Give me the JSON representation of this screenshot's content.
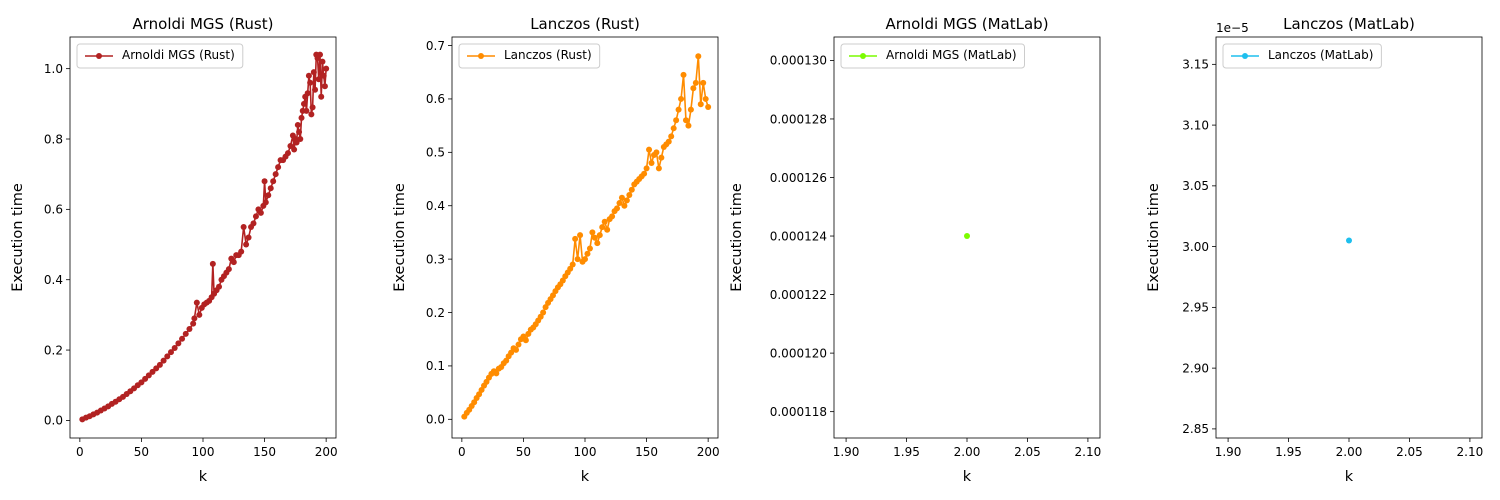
{
  "chart_data": [
    {
      "type": "line",
      "title": "Arnoldi MGS (Rust)",
      "xlabel": "k",
      "ylabel": "Execution time",
      "color": "#b22222",
      "marker": "circle",
      "legend": "upper-left",
      "grid": false,
      "xlim": [
        -8,
        208
      ],
      "ylim": [
        -0.05,
        1.09
      ],
      "xticks": [
        0,
        50,
        100,
        150,
        200
      ],
      "xtick_labels": [
        "0",
        "50",
        "100",
        "150",
        "200"
      ],
      "yticks": [
        0.0,
        0.2,
        0.4,
        0.6,
        0.8,
        1.0
      ],
      "ytick_labels": [
        "0.0",
        "0.2",
        "0.4",
        "0.6",
        "0.8",
        "1.0"
      ],
      "series": [
        {
          "name": "Arnoldi MGS (Rust)",
          "x": [
            2,
            5,
            8,
            11,
            14,
            17,
            20,
            23,
            26,
            29,
            32,
            35,
            38,
            41,
            44,
            47,
            50,
            53,
            56,
            59,
            62,
            65,
            68,
            71,
            74,
            77,
            80,
            83,
            86,
            89,
            92,
            93,
            95,
            97,
            99,
            101,
            103,
            105,
            107,
            108,
            109,
            111,
            113,
            115,
            117,
            119,
            121,
            123,
            125,
            127,
            129,
            131,
            133,
            135,
            137,
            139,
            141,
            143,
            145,
            147,
            149,
            150,
            151,
            153,
            155,
            157,
            159,
            161,
            163,
            165,
            167,
            169,
            171,
            173,
            174,
            175,
            176,
            177,
            178,
            179,
            180,
            181,
            182,
            183,
            184,
            185,
            186,
            187,
            188,
            189,
            190,
            191,
            192,
            193,
            194,
            195,
            196,
            197,
            198,
            199,
            200
          ],
          "y": [
            0.003,
            0.008,
            0.012,
            0.017,
            0.022,
            0.028,
            0.034,
            0.04,
            0.047,
            0.053,
            0.06,
            0.067,
            0.075,
            0.083,
            0.091,
            0.1,
            0.108,
            0.118,
            0.128,
            0.138,
            0.148,
            0.158,
            0.17,
            0.182,
            0.194,
            0.206,
            0.219,
            0.232,
            0.246,
            0.26,
            0.275,
            0.29,
            0.335,
            0.3,
            0.32,
            0.33,
            0.335,
            0.34,
            0.35,
            0.445,
            0.36,
            0.37,
            0.38,
            0.4,
            0.41,
            0.42,
            0.43,
            0.46,
            0.45,
            0.47,
            0.47,
            0.48,
            0.55,
            0.5,
            0.52,
            0.55,
            0.56,
            0.58,
            0.6,
            0.59,
            0.61,
            0.68,
            0.62,
            0.64,
            0.66,
            0.68,
            0.7,
            0.72,
            0.74,
            0.74,
            0.75,
            0.76,
            0.78,
            0.81,
            0.77,
            0.8,
            0.79,
            0.84,
            0.82,
            0.8,
            0.86,
            0.88,
            0.9,
            0.92,
            0.88,
            0.93,
            0.98,
            0.96,
            0.87,
            0.89,
            0.99,
            0.94,
            1.04,
            1.03,
            0.97,
            1.04,
            0.92,
            1.02,
            0.98,
            0.95,
            1.0
          ]
        }
      ]
    },
    {
      "type": "line",
      "title": "Lanczos (Rust)",
      "xlabel": "k",
      "ylabel": "Execution time",
      "color": "#ff8c00",
      "marker": "circle",
      "legend": "upper-left",
      "grid": false,
      "xlim": [
        -8,
        208
      ],
      "ylim": [
        -0.035,
        0.716
      ],
      "xticks": [
        0,
        50,
        100,
        150,
        200
      ],
      "xtick_labels": [
        "0",
        "50",
        "100",
        "150",
        "200"
      ],
      "yticks": [
        0.0,
        0.1,
        0.2,
        0.3,
        0.4,
        0.5,
        0.6,
        0.7
      ],
      "ytick_labels": [
        "0.0",
        "0.1",
        "0.2",
        "0.3",
        "0.4",
        "0.5",
        "0.6",
        "0.7"
      ],
      "series": [
        {
          "name": "Lanczos (Rust)",
          "x": [
            2,
            4,
            6,
            8,
            10,
            12,
            14,
            16,
            18,
            20,
            22,
            24,
            26,
            28,
            30,
            32,
            34,
            36,
            38,
            40,
            42,
            44,
            46,
            48,
            50,
            52,
            54,
            56,
            58,
            60,
            62,
            64,
            66,
            68,
            70,
            72,
            74,
            76,
            78,
            80,
            82,
            84,
            86,
            88,
            90,
            92,
            94,
            96,
            98,
            100,
            102,
            104,
            106,
            108,
            110,
            112,
            114,
            116,
            118,
            120,
            122,
            124,
            126,
            128,
            130,
            132,
            134,
            136,
            138,
            140,
            142,
            144,
            146,
            148,
            150,
            152,
            154,
            156,
            158,
            160,
            162,
            164,
            166,
            168,
            170,
            172,
            174,
            176,
            178,
            180,
            182,
            184,
            186,
            188,
            190,
            192,
            194,
            196,
            198,
            200
          ],
          "y": [
            0.005,
            0.012,
            0.018,
            0.025,
            0.032,
            0.04,
            0.047,
            0.055,
            0.063,
            0.07,
            0.078,
            0.085,
            0.09,
            0.086,
            0.095,
            0.098,
            0.105,
            0.11,
            0.118,
            0.125,
            0.133,
            0.13,
            0.14,
            0.15,
            0.155,
            0.148,
            0.16,
            0.168,
            0.172,
            0.178,
            0.185,
            0.192,
            0.2,
            0.21,
            0.218,
            0.225,
            0.232,
            0.24,
            0.247,
            0.253,
            0.26,
            0.268,
            0.275,
            0.282,
            0.29,
            0.338,
            0.3,
            0.345,
            0.295,
            0.3,
            0.31,
            0.32,
            0.35,
            0.34,
            0.33,
            0.345,
            0.36,
            0.37,
            0.355,
            0.375,
            0.38,
            0.39,
            0.395,
            0.405,
            0.415,
            0.4,
            0.41,
            0.42,
            0.43,
            0.44,
            0.445,
            0.45,
            0.455,
            0.46,
            0.47,
            0.505,
            0.48,
            0.495,
            0.5,
            0.47,
            0.49,
            0.51,
            0.515,
            0.52,
            0.53,
            0.545,
            0.56,
            0.58,
            0.6,
            0.645,
            0.56,
            0.55,
            0.58,
            0.62,
            0.63,
            0.68,
            0.59,
            0.63,
            0.6,
            0.585
          ]
        }
      ]
    },
    {
      "type": "scatter",
      "title": "Arnoldi MGS (MatLab)",
      "xlabel": "k",
      "ylabel": "Execution time",
      "color": "#7cfc00",
      "marker": "circle",
      "legend": "upper-left",
      "grid": false,
      "xlim": [
        1.89,
        2.11
      ],
      "ylim": [
        0.0001171,
        0.0001308
      ],
      "xticks": [
        1.9,
        1.95,
        2.0,
        2.05,
        2.1
      ],
      "xtick_labels": [
        "1.90",
        "1.95",
        "2.00",
        "2.05",
        "2.10"
      ],
      "yticks": [
        0.000118,
        0.00012,
        0.000122,
        0.000124,
        0.000126,
        0.000128,
        0.00013
      ],
      "ytick_labels": [
        "0.000118",
        "0.000120",
        "0.000122",
        "0.000124",
        "0.000126",
        "0.000128",
        "0.000130"
      ],
      "series": [
        {
          "name": "Arnoldi MGS (MatLab)",
          "x": [
            2.0
          ],
          "y": [
            0.000124
          ]
        }
      ]
    },
    {
      "type": "scatter",
      "title": "Lanczos (MatLab)",
      "xlabel": "k",
      "ylabel": "Execution time",
      "color": "#1ebfee",
      "marker": "circle",
      "legend": "upper-left",
      "grid": false,
      "offset_text": "1e−5",
      "xlim": [
        1.89,
        2.11
      ],
      "ylim": [
        2.8425,
        3.1725
      ],
      "xticks": [
        1.9,
        1.95,
        2.0,
        2.05,
        2.1
      ],
      "xtick_labels": [
        "1.90",
        "1.95",
        "2.00",
        "2.05",
        "2.10"
      ],
      "yticks": [
        2.85,
        2.9,
        2.95,
        3.0,
        3.05,
        3.1,
        3.15
      ],
      "ytick_labels": [
        "2.85",
        "2.90",
        "2.95",
        "3.00",
        "3.05",
        "3.10",
        "3.15"
      ],
      "series": [
        {
          "name": "Lanczos (MatLab)",
          "x": [
            2.0
          ],
          "y": [
            3.005
          ]
        }
      ]
    }
  ]
}
